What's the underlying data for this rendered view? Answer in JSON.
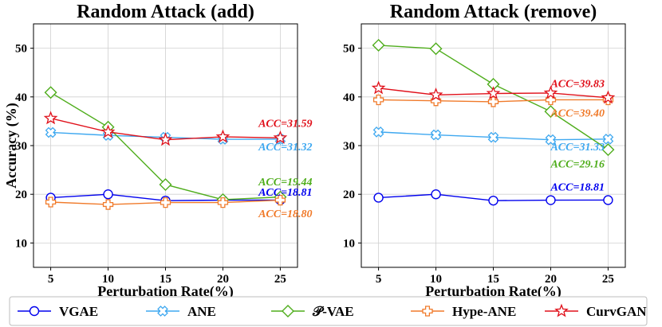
{
  "colors": {
    "VGAE": "#0000ee",
    "ANE": "#3ea8f0",
    "PVAE": "#4fad1c",
    "HypeANE": "#f07a2a",
    "CurvGAN": "#e0101a"
  },
  "legend": {
    "items": [
      {
        "key": "VGAE",
        "label": "VGAE",
        "marker": "circle"
      },
      {
        "key": "ANE",
        "label": "ANE",
        "marker": "xcross"
      },
      {
        "key": "PVAE",
        "label": "𝒫-VAE",
        "marker": "diamond"
      },
      {
        "key": "HypeANE",
        "label": "Hype-ANE",
        "marker": "plus"
      },
      {
        "key": "CurvGAN",
        "label": "CurvGAN",
        "marker": "star"
      }
    ]
  },
  "chart_data": [
    {
      "type": "line",
      "title": "Random Attack (add)",
      "xlabel": "Perturbation Rate(%)",
      "ylabel": "Accuracy (%)",
      "x": [
        5,
        10,
        15,
        20,
        25
      ],
      "xlim": [
        3.5,
        26.5
      ],
      "ylim": [
        5,
        55
      ],
      "xticks": [
        "5",
        "10",
        "15",
        "20",
        "25"
      ],
      "yticks": [
        10,
        20,
        30,
        40,
        50
      ],
      "grid": true,
      "series": [
        {
          "key": "VGAE",
          "name": "VGAE",
          "values": [
            19.3,
            20.0,
            18.7,
            18.8,
            18.81
          ]
        },
        {
          "key": "ANE",
          "name": "ANE",
          "values": [
            32.7,
            32.1,
            31.7,
            31.3,
            31.32
          ]
        },
        {
          "key": "PVAE",
          "name": "𝒫-VAE",
          "values": [
            40.9,
            33.8,
            22.0,
            18.9,
            19.44
          ]
        },
        {
          "key": "HypeANE",
          "name": "Hype-ANE",
          "values": [
            18.4,
            17.9,
            18.3,
            18.3,
            18.8
          ]
        },
        {
          "key": "CurvGAN",
          "name": "CurvGAN",
          "values": [
            35.6,
            32.8,
            31.2,
            31.8,
            31.59
          ]
        }
      ],
      "annotations": [
        {
          "text": "ACC=31.59",
          "key": "CurvGAN",
          "x": 23.1,
          "y": 33.8
        },
        {
          "text": "ACC=31.32",
          "key": "ANE",
          "x": 23.1,
          "y": 29.0
        },
        {
          "text": "ACC=19.44",
          "key": "PVAE",
          "x": 23.1,
          "y": 21.8
        },
        {
          "text": "ACC=18.81",
          "key": "VGAE",
          "x": 23.1,
          "y": 19.7
        },
        {
          "text": "ACC=18.80",
          "key": "HypeANE",
          "x": 23.1,
          "y": 15.3
        }
      ]
    },
    {
      "type": "line",
      "title": "Random Attack (remove)",
      "xlabel": "Perturbation Rate(%)",
      "ylabel": "",
      "x": [
        5,
        10,
        15,
        20,
        25
      ],
      "xlim": [
        3.5,
        26.5
      ],
      "ylim": [
        5,
        55
      ],
      "xticks": [
        "5",
        "10",
        "15",
        "20",
        "25"
      ],
      "yticks": [
        10,
        20,
        30,
        40,
        50
      ],
      "grid": true,
      "series": [
        {
          "key": "VGAE",
          "name": "VGAE",
          "values": [
            19.3,
            20.0,
            18.7,
            18.8,
            18.81
          ]
        },
        {
          "key": "ANE",
          "name": "ANE",
          "values": [
            32.8,
            32.2,
            31.7,
            31.2,
            31.33
          ]
        },
        {
          "key": "PVAE",
          "name": "𝒫-VAE",
          "values": [
            50.6,
            49.9,
            42.6,
            37.0,
            29.16
          ]
        },
        {
          "key": "HypeANE",
          "name": "Hype-ANE",
          "values": [
            39.4,
            39.2,
            39.0,
            39.4,
            39.4
          ]
        },
        {
          "key": "CurvGAN",
          "name": "CurvGAN",
          "values": [
            41.8,
            40.4,
            40.7,
            40.8,
            39.83
          ]
        }
      ],
      "annotations": [
        {
          "text": "ACC=39.83",
          "key": "CurvGAN",
          "x": 20.0,
          "y": 42.0
        },
        {
          "text": "ACC=39.40",
          "key": "HypeANE",
          "x": 20.0,
          "y": 36.0
        },
        {
          "text": "ACC=31.33",
          "key": "ANE",
          "x": 20.0,
          "y": 29.0
        },
        {
          "text": "ACC=29.16",
          "key": "PVAE",
          "x": 20.0,
          "y": 25.5
        },
        {
          "text": "ACC=18.81",
          "key": "VGAE",
          "x": 20.0,
          "y": 20.8
        }
      ]
    }
  ]
}
